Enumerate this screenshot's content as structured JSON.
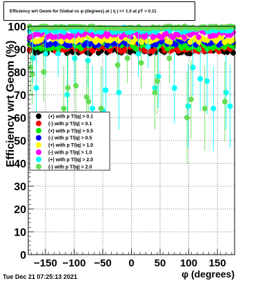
{
  "title": "Efficiency wrt Geom for Global vs φ (degrees) at | η | <= 1.0 at pT > 0.11",
  "footer": "Tue Dec 21 07:25:13 2021",
  "chart_data": {
    "type": "scatter",
    "title": "Efficiency wrt Geom for Global vs φ (degrees) at | η | <= 1.0 at pT > 0.11",
    "xlabel": "φ (degrees)",
    "ylabel": "Efficiency wrt Geom (%)",
    "xlim": [
      -180,
      180
    ],
    "ylim": [
      0,
      100
    ],
    "xticks": [
      -150,
      -100,
      -50,
      0,
      50,
      100,
      150
    ],
    "yticks": [
      0,
      10,
      20,
      30,
      40,
      50,
      60,
      70,
      80,
      90,
      100
    ],
    "grid": true,
    "legend_position": "middle-left",
    "series": [
      {
        "name": "(+) with p T/|q| > 0.1",
        "color": "#000000",
        "y_level": 89.5,
        "y_spread": 1.5,
        "dip_points": []
      },
      {
        "name": "(-) with p T/|q| > 0.1",
        "color": "#ff0000",
        "y_level": 90.5,
        "y_spread": 1.5,
        "dip_points": []
      },
      {
        "name": "(+) with p T/|q| > 0.5",
        "color": "#00ee00",
        "y_level": 91.5,
        "y_spread": 1.5,
        "dip_points": []
      },
      {
        "name": "(-) with p T/|q| > 0.5",
        "color": "#0000ff",
        "y_level": 93.0,
        "y_spread": 1.5,
        "dip_points": []
      },
      {
        "name": "(+) with p T/|q| > 1.0",
        "color": "#ffff00",
        "y_level": 94.5,
        "y_spread": 1.5,
        "dip_points": []
      },
      {
        "name": "(-) with p T/|q| > 1.0",
        "color": "#ff00ff",
        "y_level": 96.5,
        "y_spread": 1.5,
        "dip_points": []
      },
      {
        "name": "(+) with p T/|q| > 2.0",
        "color": "#00ffff",
        "y_level": 98.5,
        "y_spread": 1.0,
        "dip_points": [
          [
            -172,
            86
          ],
          [
            -166,
            73
          ],
          [
            -150,
            88
          ],
          [
            -128,
            88
          ],
          [
            -112,
            70
          ],
          [
            -99,
            86
          ],
          [
            -76,
            85
          ],
          [
            -68,
            64
          ],
          [
            -50,
            63
          ],
          [
            -45,
            72
          ],
          [
            -22,
            71
          ],
          [
            -3,
            99
          ],
          [
            12,
            88
          ],
          [
            29,
            91
          ],
          [
            41,
            73
          ],
          [
            47,
            78
          ],
          [
            75,
            73
          ],
          [
            99,
            65
          ],
          [
            107,
            82
          ],
          [
            120,
            77
          ],
          [
            132,
            76
          ],
          [
            143,
            64
          ],
          [
            165,
            71
          ],
          [
            172,
            65
          ]
        ]
      },
      {
        "name": "(-) with p T/|q| > 2.0",
        "color": "#66dd55",
        "y_level": 99.5,
        "y_spread": 0.6,
        "dip_points": [
          [
            -176,
            82
          ],
          [
            -173,
            79
          ],
          [
            -153,
            80
          ],
          [
            -118,
            64
          ],
          [
            -111,
            73
          ],
          [
            -97,
            74
          ],
          [
            -78,
            69
          ],
          [
            -75,
            67
          ],
          [
            -53,
            64
          ],
          [
            -24,
            83
          ],
          [
            -7,
            86
          ],
          [
            17,
            84
          ],
          [
            41,
            71
          ],
          [
            45,
            76
          ],
          [
            66,
            86
          ],
          [
            97,
            60
          ],
          [
            104,
            68
          ],
          [
            128,
            64
          ],
          [
            163,
            67
          ]
        ]
      }
    ]
  }
}
